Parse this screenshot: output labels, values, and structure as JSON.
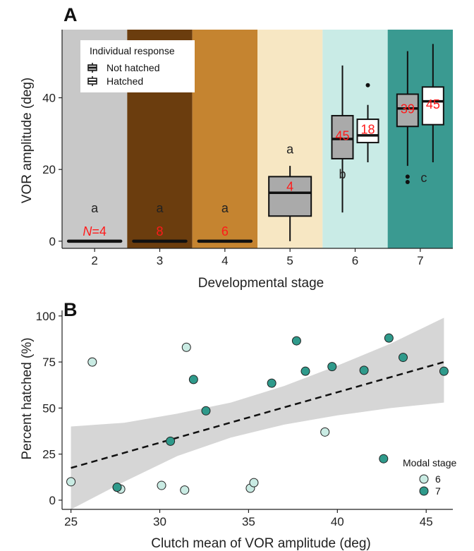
{
  "panel_a": {
    "panel_label": "A",
    "legend": {
      "title": "Individual response",
      "items": [
        "Not hatched",
        "Hatched"
      ]
    },
    "chart_data": {
      "type": "box",
      "xlabel": "Developmental stage",
      "ylabel": "VOR amplitude (deg)",
      "ylim": [
        -2,
        59
      ],
      "y_ticks": [
        0,
        20,
        40
      ],
      "categories": [
        "2",
        "3",
        "4",
        "5",
        "6",
        "7"
      ],
      "band_colors": [
        "#c8c8c8",
        "#6b3d0e",
        "#c58430",
        "#f7e7c3",
        "#c9ebe6",
        "#3a9a91"
      ],
      "boxes": [
        {
          "stage": "2",
          "response": "Not hatched",
          "min": 0,
          "q1": 0,
          "median": 0,
          "q3": 0,
          "max": 0,
          "outliers": []
        },
        {
          "stage": "3",
          "response": "Not hatched",
          "min": 0,
          "q1": 0,
          "median": 0,
          "q3": 0,
          "max": 0,
          "outliers": []
        },
        {
          "stage": "4",
          "response": "Not hatched",
          "min": 0,
          "q1": 0,
          "median": 0,
          "q3": 0,
          "max": 0,
          "outliers": []
        },
        {
          "stage": "5",
          "response": "Not hatched",
          "min": 0,
          "q1": 7,
          "median": 13.5,
          "q3": 18,
          "max": 21,
          "outliers": []
        },
        {
          "stage": "6",
          "response": "Not hatched",
          "min": 8,
          "q1": 23,
          "median": 28.5,
          "q3": 35,
          "max": 49,
          "outliers": []
        },
        {
          "stage": "6",
          "response": "Hatched",
          "min": 22,
          "q1": 27.5,
          "median": 29.5,
          "q3": 34,
          "max": 38,
          "outliers": [
            43.5
          ]
        },
        {
          "stage": "7",
          "response": "Not hatched",
          "min": 21,
          "q1": 32,
          "median": 37,
          "q3": 41,
          "max": 53,
          "outliers": [
            18,
            16.5
          ]
        },
        {
          "stage": "7",
          "response": "Hatched",
          "min": 22,
          "q1": 32.5,
          "median": 39,
          "q3": 43,
          "max": 55,
          "outliers": []
        }
      ],
      "sig_letters": [
        {
          "stage": "2",
          "letter": "a",
          "y": 8
        },
        {
          "stage": "3",
          "letter": "a",
          "y": 8
        },
        {
          "stage": "4",
          "letter": "a",
          "y": 8
        },
        {
          "stage": "5",
          "letter": "a",
          "y": 24.5
        },
        {
          "stage": "6",
          "letter": "b",
          "y": 17.5
        },
        {
          "stage": "7",
          "letter": "c",
          "y": 16.5
        }
      ],
      "sample_sizes": [
        {
          "stage": "2",
          "response": "Not hatched",
          "prefix": "N",
          "text": "=4"
        },
        {
          "stage": "3",
          "response": "Not hatched",
          "text": "8"
        },
        {
          "stage": "4",
          "response": "Not hatched",
          "text": "6"
        },
        {
          "stage": "5",
          "response": "Not hatched",
          "text": "4"
        },
        {
          "stage": "6",
          "response": "Not hatched",
          "text": "45"
        },
        {
          "stage": "6",
          "response": "Hatched",
          "text": "18"
        },
        {
          "stage": "7",
          "response": "Not hatched",
          "text": "39"
        },
        {
          "stage": "7",
          "response": "Hatched",
          "text": "45"
        }
      ]
    }
  },
  "panel_b": {
    "panel_label": "B",
    "legend": {
      "title": "Modal stage",
      "items": [
        {
          "label": "6",
          "color": "#c9ebe3"
        },
        {
          "label": "7",
          "color": "#2f9a8b"
        }
      ]
    },
    "chart_data": {
      "type": "scatter",
      "xlabel": "Clutch mean of VOR amplitude (deg)",
      "ylabel": "Percent hatched (%)",
      "xlim": [
        24.5,
        46.5
      ],
      "ylim": [
        -5,
        103
      ],
      "x_ticks": [
        25,
        30,
        35,
        40,
        45
      ],
      "y_ticks": [
        0,
        25,
        50,
        75,
        100
      ],
      "trend_line": {
        "style": "dashed",
        "x": [
          25,
          46
        ],
        "y": [
          17.5,
          75
        ]
      },
      "confidence_band": {
        "x": [
          25,
          28,
          31,
          34,
          37,
          40,
          43,
          46
        ],
        "lower": [
          -5,
          10,
          24,
          34,
          41,
          46,
          50,
          53
        ],
        "upper": [
          40,
          42,
          47,
          53,
          62,
          73,
          85,
          99
        ]
      },
      "series": [
        {
          "name": "6",
          "color": "#c9ebe3",
          "x": [
            25.0,
            26.2,
            27.6,
            27.8,
            30.1,
            31.4,
            31.5,
            35.1,
            35.3,
            39.3
          ],
          "y": [
            10,
            75,
            7,
            6,
            8,
            5.5,
            83,
            6.5,
            9.5,
            37
          ]
        },
        {
          "name": "7",
          "color": "#2f9a8b",
          "x": [
            27.6,
            30.6,
            31.9,
            32.6,
            36.3,
            37.7,
            38.2,
            39.7,
            41.5,
            42.6,
            42.9,
            43.7,
            46.0
          ],
          "y": [
            7,
            32,
            65.5,
            48.5,
            63.5,
            86.5,
            70,
            72.5,
            70.5,
            22.5,
            88,
            77.5,
            70
          ]
        }
      ]
    }
  }
}
